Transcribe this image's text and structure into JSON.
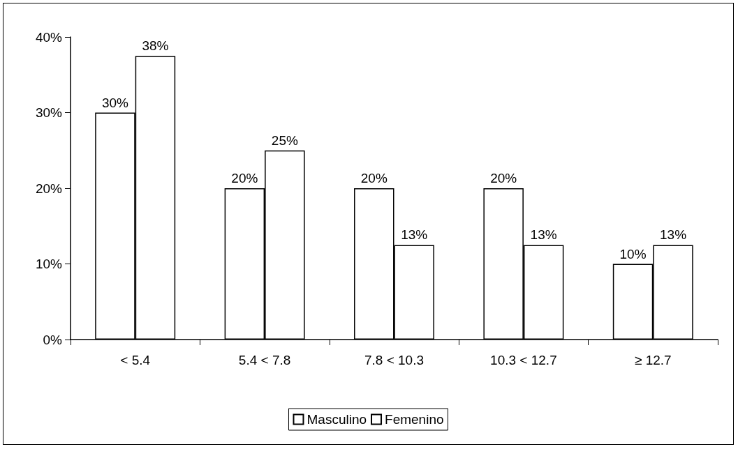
{
  "chart_data": {
    "type": "bar",
    "categories": [
      "< 5.4",
      "5.4 < 7.8",
      "7.8 < 10.3",
      "10.3 < 12.7",
      "≥ 12.7"
    ],
    "series": [
      {
        "name": "Masculino",
        "color": "#ffffff",
        "values": [
          30,
          20,
          20,
          20,
          10
        ],
        "value_labels": [
          "30%",
          "20%",
          "20%",
          "20%",
          "10%"
        ]
      },
      {
        "name": "Femenino",
        "color": "#ffffff",
        "values": [
          37.5,
          25,
          12.5,
          12.5,
          12.5
        ],
        "value_labels": [
          "38%",
          "25%",
          "13%",
          "13%",
          "13%"
        ]
      }
    ],
    "ylim": [
      0,
      40
    ],
    "yticks": [
      {
        "value": 0,
        "label": "0%"
      },
      {
        "value": 10,
        "label": "10%"
      },
      {
        "value": 20,
        "label": "20%"
      },
      {
        "value": 30,
        "label": "30%"
      },
      {
        "value": 40,
        "label": "40%"
      }
    ],
    "grid": false,
    "legend": "bottom"
  }
}
